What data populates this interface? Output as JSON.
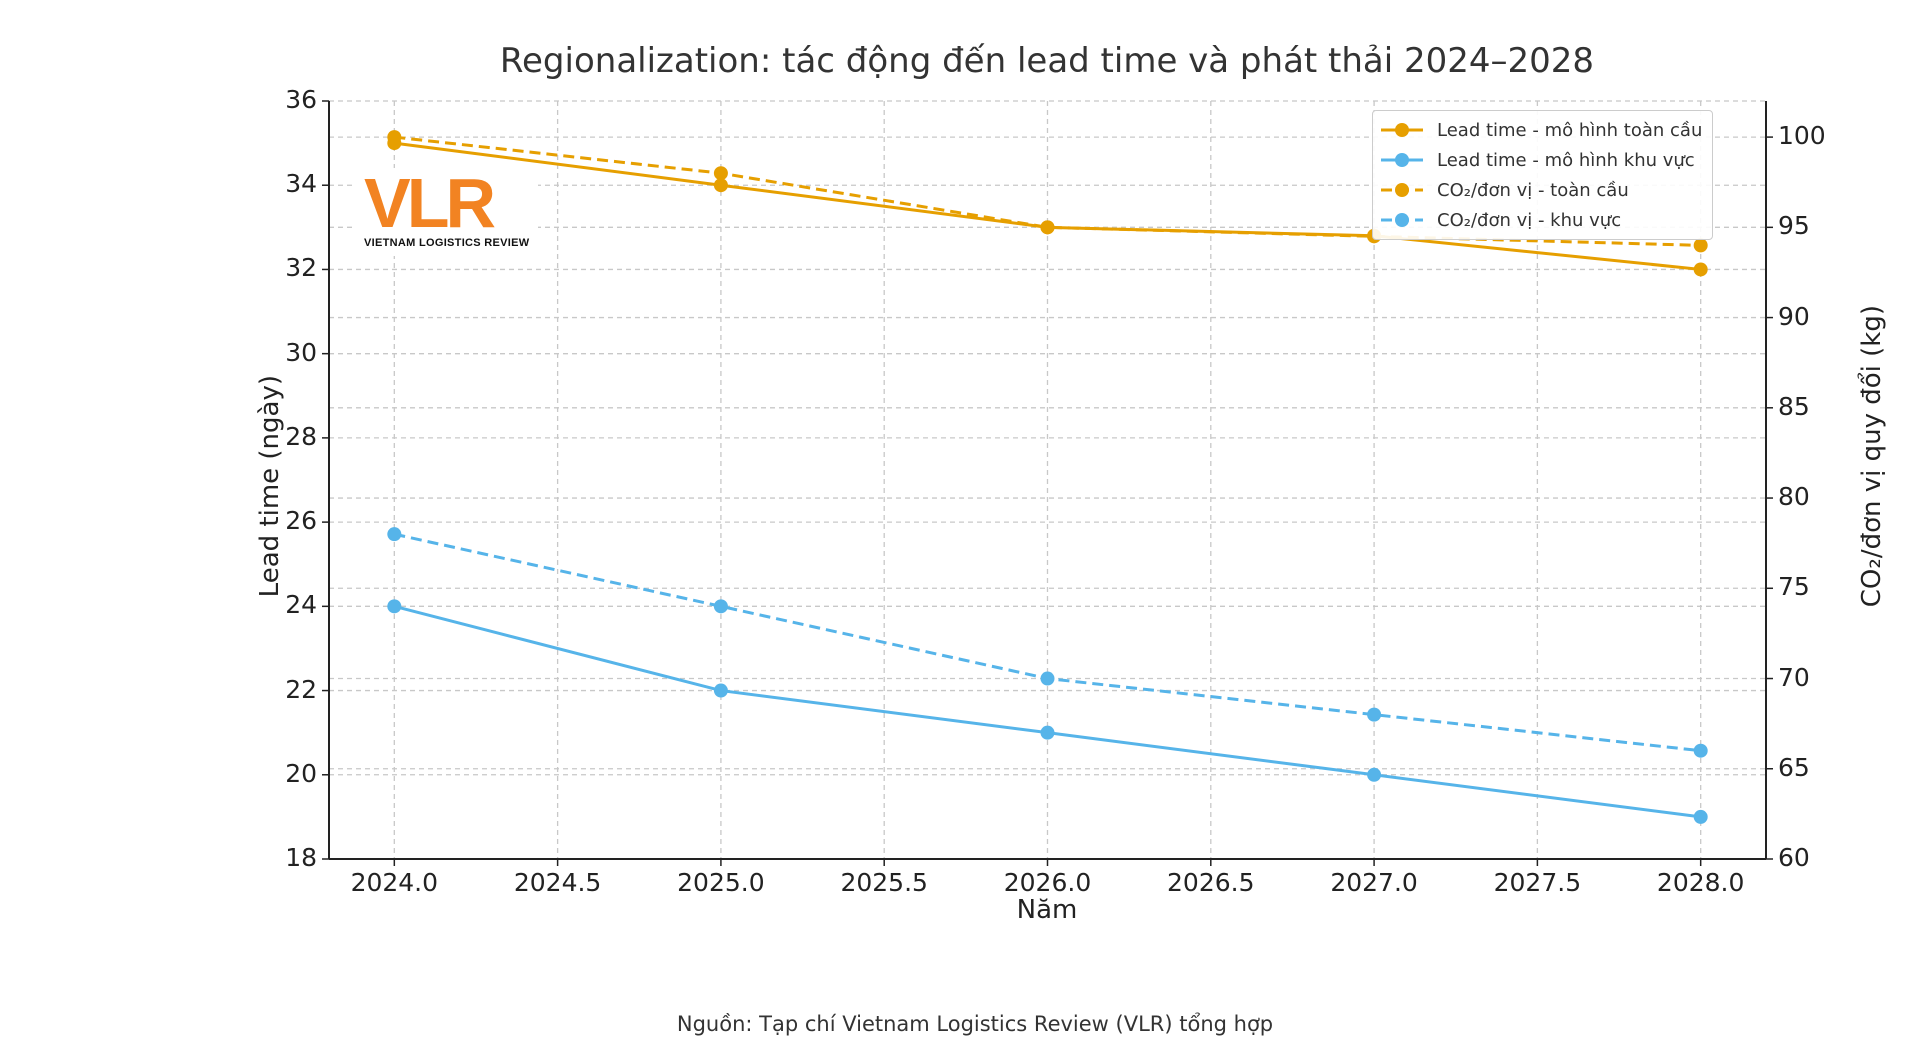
{
  "chart_data": {
    "type": "line",
    "title": "Regionalization: tác động đến lead time và phát thải 2024–2028",
    "xlabel": "Năm",
    "ylabel_left": "Lead time (ngày)",
    "ylabel_right": "CO₂/đơn vị quy đổi (kg)",
    "xlim": [
      2023.8,
      2028.2
    ],
    "ylim_left": [
      18,
      36
    ],
    "ylim_right": [
      60,
      102
    ],
    "x_ticks": [
      "2024.0",
      "2024.5",
      "2025.0",
      "2025.5",
      "2026.0",
      "2026.5",
      "2027.0",
      "2027.5",
      "2028.0"
    ],
    "y_ticks_left": [
      "18",
      "20",
      "22",
      "24",
      "26",
      "28",
      "30",
      "32",
      "34",
      "36"
    ],
    "y_ticks_right": [
      "60",
      "65",
      "70",
      "75",
      "80",
      "85",
      "90",
      "95",
      "100"
    ],
    "grid": true,
    "legend_position": "top-right",
    "x": [
      2024,
      2025,
      2026,
      2027,
      2028
    ],
    "series": [
      {
        "name": "Lead time - mô hình toàn cầu",
        "axis": "left",
        "style": "solid",
        "color": "#E69F00",
        "values": [
          35,
          34,
          33,
          32.8,
          32
        ]
      },
      {
        "name": "Lead time - mô hình khu vực",
        "axis": "left",
        "style": "solid",
        "color": "#56B4E9",
        "values": [
          24,
          22,
          21,
          20,
          19
        ]
      },
      {
        "name": "CO₂/đơn vị - toàn cầu",
        "axis": "right",
        "style": "dashed",
        "color": "#E69F00",
        "values": [
          100,
          98,
          95,
          94.5,
          94
        ]
      },
      {
        "name": "CO₂/đơn vị - khu vực",
        "axis": "right",
        "style": "dashed",
        "color": "#56B4E9",
        "values": [
          78,
          74,
          70,
          68,
          66
        ]
      }
    ]
  },
  "logo": {
    "text": "VLR",
    "subtitle": "VIETNAM LOGISTICS REVIEW",
    "color": "#F28322"
  },
  "source": "Nguồn: Tạp chí Vietnam Logistics Review (VLR) tổng hợp"
}
